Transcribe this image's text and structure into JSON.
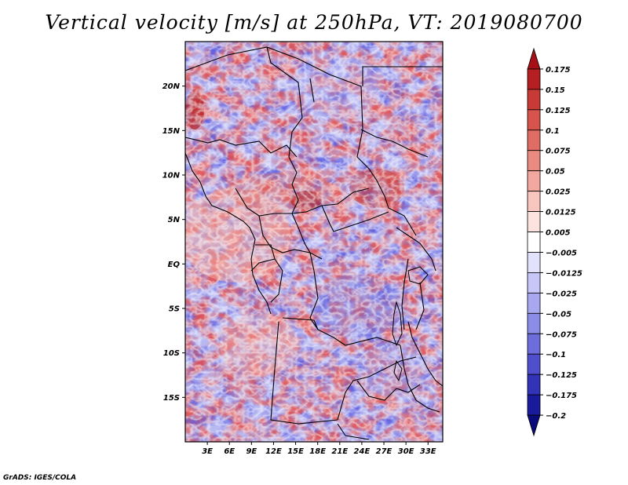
{
  "title": "Vertical velocity [m/s] at 250hPa, VT: 2019080700",
  "credit": "GrADS: IGES/COLA",
  "map": {
    "region": "Central Africa",
    "lon_range": [
      0,
      35
    ],
    "lat_range": [
      -20,
      25
    ],
    "lat_ticks": [
      {
        "label": "20N",
        "value": 20
      },
      {
        "label": "15N",
        "value": 15
      },
      {
        "label": "10N",
        "value": 10
      },
      {
        "label": "5N",
        "value": 5
      },
      {
        "label": "EQ",
        "value": 0
      },
      {
        "label": "5S",
        "value": -5
      },
      {
        "label": "10S",
        "value": -10
      },
      {
        "label": "15S",
        "value": -15
      }
    ],
    "lon_ticks": [
      {
        "label": "3E",
        "value": 3
      },
      {
        "label": "6E",
        "value": 6
      },
      {
        "label": "9E",
        "value": 9
      },
      {
        "label": "12E",
        "value": 12
      },
      {
        "label": "15E",
        "value": 15
      },
      {
        "label": "18E",
        "value": 18
      },
      {
        "label": "21E",
        "value": 21
      },
      {
        "label": "24E",
        "value": 24
      },
      {
        "label": "27E",
        "value": 27
      },
      {
        "label": "30E",
        "value": 30
      },
      {
        "label": "33E",
        "value": 33
      }
    ]
  },
  "colorbar": {
    "levels": [
      "0.175",
      "0.15",
      "0.125",
      "0.1",
      "0.075",
      "0.05",
      "0.025",
      "0.0125",
      "0.005",
      "−0.005",
      "−0.0125",
      "−0.025",
      "−0.05",
      "−0.075",
      "−0.1",
      "−0.125",
      "−0.175",
      "−0.2"
    ],
    "colors": [
      "#a50f15",
      "#b51f22",
      "#c83a35",
      "#d6544c",
      "#e06d63",
      "#ea8a80",
      "#f2a79f",
      "#f8c5bf",
      "#fde3e0",
      "#ffffff",
      "#e2e2fd",
      "#c6c6f8",
      "#a8a8f1",
      "#8b8be8",
      "#6d6ddc",
      "#4f4fcd",
      "#3333b8",
      "#1a1a9d",
      "#0a0a7a"
    ]
  }
}
